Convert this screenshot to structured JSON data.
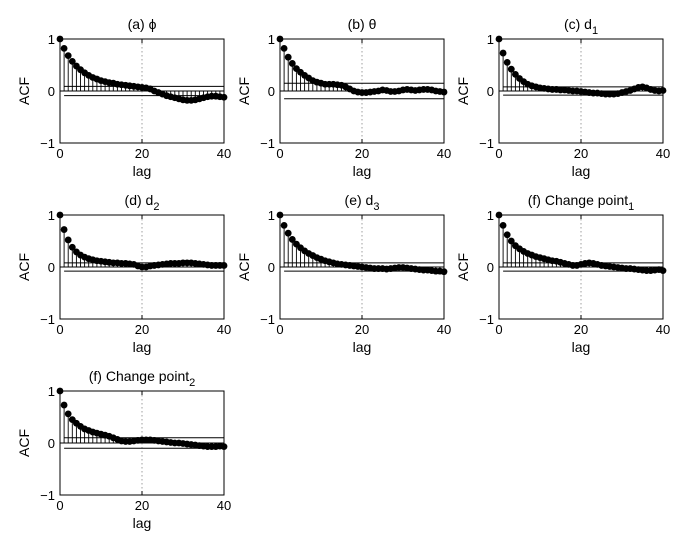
{
  "figure": {
    "ylabel": "ACF",
    "xlabel": "lag",
    "xticks": [
      "0",
      "20",
      "40"
    ],
    "yticks": [
      "1",
      "0",
      "−1"
    ]
  },
  "chart_data": [
    {
      "type": "stem",
      "title": "(a) ϕ",
      "xlabel": "lag",
      "ylabel": "ACF",
      "xlim": [
        0,
        40
      ],
      "ylim": [
        -1,
        1
      ],
      "confidence_bounds": [
        0.09,
        -0.09
      ],
      "lags": [
        0,
        1,
        2,
        3,
        4,
        5,
        6,
        7,
        8,
        9,
        10,
        11,
        12,
        13,
        14,
        15,
        16,
        17,
        18,
        19,
        20,
        21,
        22,
        23,
        24,
        25,
        26,
        27,
        28,
        29,
        30,
        31,
        32,
        33,
        34,
        35,
        36,
        37,
        38,
        39,
        40
      ],
      "values": [
        1.0,
        0.82,
        0.68,
        0.57,
        0.48,
        0.41,
        0.35,
        0.3,
        0.26,
        0.23,
        0.2,
        0.18,
        0.16,
        0.15,
        0.13,
        0.12,
        0.11,
        0.1,
        0.09,
        0.08,
        0.07,
        0.06,
        0.04,
        0.0,
        -0.03,
        -0.06,
        -0.09,
        -0.11,
        -0.13,
        -0.15,
        -0.17,
        -0.18,
        -0.18,
        -0.17,
        -0.15,
        -0.13,
        -0.11,
        -0.1,
        -0.1,
        -0.11,
        -0.12
      ]
    },
    {
      "type": "stem",
      "title": "(b) θ",
      "xlabel": "lag",
      "ylabel": "ACF",
      "xlim": [
        0,
        40
      ],
      "ylim": [
        -1,
        1
      ],
      "confidence_bounds": [
        0.15,
        -0.15
      ],
      "lags": [
        0,
        1,
        2,
        3,
        4,
        5,
        6,
        7,
        8,
        9,
        10,
        11,
        12,
        13,
        14,
        15,
        16,
        17,
        18,
        19,
        20,
        21,
        22,
        23,
        24,
        25,
        26,
        27,
        28,
        29,
        30,
        31,
        32,
        33,
        34,
        35,
        36,
        37,
        38,
        39,
        40
      ],
      "values": [
        1.0,
        0.82,
        0.65,
        0.53,
        0.43,
        0.36,
        0.3,
        0.25,
        0.2,
        0.17,
        0.15,
        0.13,
        0.13,
        0.13,
        0.12,
        0.11,
        0.08,
        0.04,
        0.0,
        -0.02,
        -0.03,
        -0.03,
        -0.02,
        -0.01,
        0.0,
        0.02,
        0.01,
        -0.01,
        -0.01,
        0.0,
        0.02,
        0.03,
        0.02,
        0.01,
        0.02,
        0.03,
        0.03,
        0.02,
        0.0,
        -0.01,
        -0.02
      ]
    },
    {
      "type": "stem",
      "title": "(c) d",
      "title_subscript": "1",
      "xlabel": "lag",
      "ylabel": "ACF",
      "xlim": [
        0,
        40
      ],
      "ylim": [
        -1,
        1
      ],
      "confidence_bounds": [
        0.08,
        -0.08
      ],
      "lags": [
        0,
        1,
        2,
        3,
        4,
        5,
        6,
        7,
        8,
        9,
        10,
        11,
        12,
        13,
        14,
        15,
        16,
        17,
        18,
        19,
        20,
        21,
        22,
        23,
        24,
        25,
        26,
        27,
        28,
        29,
        30,
        31,
        32,
        33,
        34,
        35,
        36,
        37,
        38,
        39,
        40
      ],
      "values": [
        1.0,
        0.73,
        0.55,
        0.42,
        0.32,
        0.24,
        0.18,
        0.13,
        0.1,
        0.08,
        0.06,
        0.05,
        0.04,
        0.03,
        0.03,
        0.02,
        0.02,
        0.01,
        0.0,
        0.0,
        -0.01,
        -0.02,
        -0.03,
        -0.04,
        -0.04,
        -0.05,
        -0.06,
        -0.06,
        -0.06,
        -0.05,
        -0.03,
        -0.01,
        0.01,
        0.04,
        0.07,
        0.08,
        0.06,
        0.03,
        0.01,
        0.0,
        0.01
      ]
    },
    {
      "type": "stem",
      "title": "(d) d",
      "title_subscript": "2",
      "xlabel": "lag",
      "ylabel": "ACF",
      "xlim": [
        0,
        40
      ],
      "ylim": [
        -1,
        1
      ],
      "confidence_bounds": [
        0.08,
        -0.08
      ],
      "lags": [
        0,
        1,
        2,
        3,
        4,
        5,
        6,
        7,
        8,
        9,
        10,
        11,
        12,
        13,
        14,
        15,
        16,
        17,
        18,
        19,
        20,
        21,
        22,
        23,
        24,
        25,
        26,
        27,
        28,
        29,
        30,
        31,
        32,
        33,
        34,
        35,
        36,
        37,
        38,
        39,
        40
      ],
      "values": [
        1.0,
        0.72,
        0.52,
        0.38,
        0.29,
        0.23,
        0.19,
        0.16,
        0.14,
        0.12,
        0.11,
        0.1,
        0.09,
        0.08,
        0.08,
        0.07,
        0.07,
        0.06,
        0.05,
        0.02,
        0.0,
        0.0,
        0.02,
        0.03,
        0.04,
        0.05,
        0.06,
        0.07,
        0.07,
        0.07,
        0.08,
        0.08,
        0.08,
        0.07,
        0.06,
        0.05,
        0.04,
        0.03,
        0.03,
        0.03,
        0.03
      ]
    },
    {
      "type": "stem",
      "title": "(e) d",
      "title_subscript": "3",
      "xlabel": "lag",
      "ylabel": "ACF",
      "xlim": [
        0,
        40
      ],
      "ylim": [
        -1,
        1
      ],
      "confidence_bounds": [
        0.08,
        -0.08
      ],
      "lags": [
        0,
        1,
        2,
        3,
        4,
        5,
        6,
        7,
        8,
        9,
        10,
        11,
        12,
        13,
        14,
        15,
        16,
        17,
        18,
        19,
        20,
        21,
        22,
        23,
        24,
        25,
        26,
        27,
        28,
        29,
        30,
        31,
        32,
        33,
        34,
        35,
        36,
        37,
        38,
        39,
        40
      ],
      "values": [
        1.0,
        0.8,
        0.65,
        0.53,
        0.44,
        0.37,
        0.31,
        0.26,
        0.22,
        0.18,
        0.15,
        0.12,
        0.1,
        0.08,
        0.06,
        0.05,
        0.04,
        0.03,
        0.02,
        0.01,
        0.0,
        -0.01,
        -0.02,
        -0.03,
        -0.03,
        -0.03,
        -0.04,
        -0.03,
        -0.02,
        -0.01,
        -0.01,
        -0.02,
        -0.03,
        -0.04,
        -0.05,
        -0.06,
        -0.06,
        -0.07,
        -0.08,
        -0.08,
        -0.09
      ]
    },
    {
      "type": "stem",
      "title": "(f) Change point",
      "title_subscript": "1",
      "xlabel": "lag",
      "ylabel": "ACF",
      "xlim": [
        0,
        40
      ],
      "ylim": [
        -1,
        1
      ],
      "confidence_bounds": [
        0.08,
        -0.08
      ],
      "lags": [
        0,
        1,
        2,
        3,
        4,
        5,
        6,
        7,
        8,
        9,
        10,
        11,
        12,
        13,
        14,
        15,
        16,
        17,
        18,
        19,
        20,
        21,
        22,
        23,
        24,
        25,
        26,
        27,
        28,
        29,
        30,
        31,
        32,
        33,
        34,
        35,
        36,
        37,
        38,
        39,
        40
      ],
      "values": [
        1.0,
        0.8,
        0.62,
        0.5,
        0.41,
        0.35,
        0.3,
        0.26,
        0.23,
        0.2,
        0.18,
        0.16,
        0.14,
        0.12,
        0.11,
        0.09,
        0.07,
        0.05,
        0.03,
        0.03,
        0.05,
        0.07,
        0.08,
        0.07,
        0.05,
        0.03,
        0.02,
        0.01,
        0.0,
        -0.01,
        -0.02,
        -0.03,
        -0.03,
        -0.04,
        -0.05,
        -0.06,
        -0.07,
        -0.07,
        -0.06,
        -0.05,
        -0.07
      ]
    },
    {
      "type": "stem",
      "title": "(f) Change point",
      "title_subscript": "2",
      "xlabel": "lag",
      "ylabel": "ACF",
      "xlim": [
        0,
        40
      ],
      "ylim": [
        -1,
        1
      ],
      "confidence_bounds": [
        0.1,
        -0.1
      ],
      "lags": [
        0,
        1,
        2,
        3,
        4,
        5,
        6,
        7,
        8,
        9,
        10,
        11,
        12,
        13,
        14,
        15,
        16,
        17,
        18,
        19,
        20,
        21,
        22,
        23,
        24,
        25,
        26,
        27,
        28,
        29,
        30,
        31,
        32,
        33,
        34,
        35,
        36,
        37,
        38,
        39,
        40
      ],
      "values": [
        1.0,
        0.73,
        0.56,
        0.45,
        0.38,
        0.32,
        0.27,
        0.24,
        0.21,
        0.19,
        0.17,
        0.15,
        0.13,
        0.1,
        0.07,
        0.04,
        0.03,
        0.03,
        0.04,
        0.05,
        0.06,
        0.06,
        0.06,
        0.05,
        0.04,
        0.03,
        0.02,
        0.01,
        0.0,
        0.0,
        -0.01,
        -0.02,
        -0.03,
        -0.04,
        -0.05,
        -0.06,
        -0.07,
        -0.07,
        -0.07,
        -0.06,
        -0.07
      ]
    }
  ]
}
